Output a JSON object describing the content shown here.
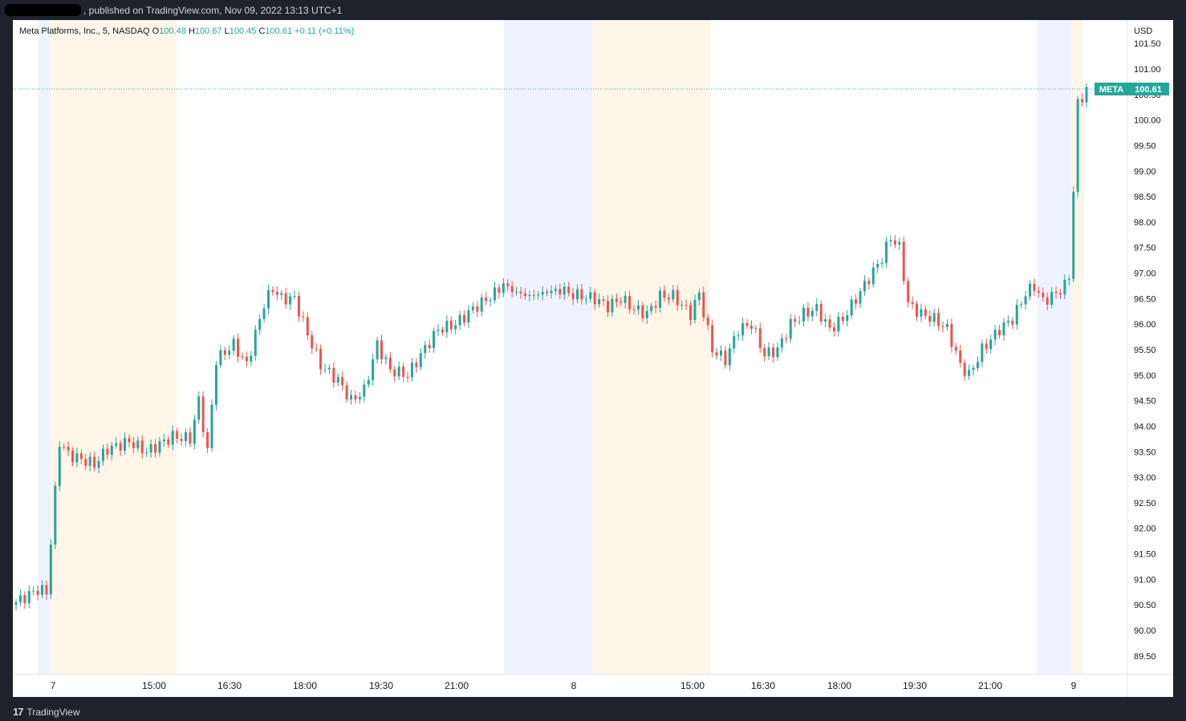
{
  "header": {
    "published_text": ", published on TradingView.com, Nov 09, 2022 13:13 UTC+1"
  },
  "footer": {
    "brand": "TradingView",
    "logo_icon": "tradingview-logo-icon"
  },
  "legend": {
    "symbol_line": "Meta Platforms, Inc., 5, NASDAQ",
    "o_label": "O",
    "o_value": "100.48",
    "h_label": "H",
    "h_value": "100.67",
    "l_label": "L",
    "l_value": "100.45",
    "c_label": "C",
    "c_value": "100.61",
    "change": "+0.11 (+0.11%)"
  },
  "price_tag": {
    "symbol": "META",
    "value": "100.61"
  },
  "colors": {
    "up": "#26a69a",
    "down": "#ef5350",
    "tag": "#26a69a",
    "premarket": "#eef3ff",
    "afterhours": "#fff5e8"
  },
  "chart_data": {
    "type": "candlestick",
    "symbol": "META",
    "interval": "5",
    "exchange": "NASDAQ",
    "currency": "USD",
    "last_price": 100.61,
    "y_ticks": [
      "101.50",
      "101.00",
      "100.50",
      "100.00",
      "99.50",
      "99.00",
      "98.50",
      "98.00",
      "97.50",
      "97.00",
      "96.50",
      "96.00",
      "95.50",
      "95.00",
      "94.50",
      "94.00",
      "93.50",
      "93.00",
      "92.50",
      "92.00",
      "91.50",
      "91.00",
      "90.50",
      "90.00",
      "89.50"
    ],
    "x_ticks": [
      "7",
      "15:00",
      "16:30",
      "18:00",
      "19:30",
      "21:00",
      "8",
      "15:00",
      "16:30",
      "18:00",
      "19:30",
      "21:00",
      "9"
    ],
    "sessions": [
      {
        "kind": "premarket",
        "label": "Nov 7 pre-market"
      },
      {
        "kind": "afterhours",
        "label": "Nov 7 extended"
      },
      {
        "kind": "premarket",
        "label": "Nov 7 post-market"
      },
      {
        "kind": "afterhours",
        "label": "Nov 8 extended"
      },
      {
        "kind": "premarket",
        "label": "Nov 8 post-market"
      },
      {
        "kind": "afterhours",
        "label": "Nov 9 extended"
      }
    ],
    "anchors": [
      {
        "t": 0,
        "p": 90.55
      },
      {
        "t": 3,
        "p": 90.7
      },
      {
        "t": 5,
        "p": 90.8
      },
      {
        "t": 7,
        "p": 90.75
      },
      {
        "t": 10,
        "p": 93.7
      },
      {
        "t": 12,
        "p": 93.45
      },
      {
        "t": 15,
        "p": 93.35
      },
      {
        "t": 18,
        "p": 93.25
      },
      {
        "t": 21,
        "p": 93.55
      },
      {
        "t": 26,
        "p": 93.7
      },
      {
        "t": 30,
        "p": 93.5
      },
      {
        "t": 36,
        "p": 93.8
      },
      {
        "t": 40,
        "p": 93.75
      },
      {
        "t": 42,
        "p": 94.5
      },
      {
        "t": 44,
        "p": 93.5
      },
      {
        "t": 46,
        "p": 95.3
      },
      {
        "t": 50,
        "p": 95.6
      },
      {
        "t": 53,
        "p": 95.2
      },
      {
        "t": 57,
        "p": 96.4
      },
      {
        "t": 59,
        "p": 96.7
      },
      {
        "t": 61,
        "p": 96.5
      },
      {
        "t": 64,
        "p": 96.5
      },
      {
        "t": 67,
        "p": 95.8
      },
      {
        "t": 70,
        "p": 95.2
      },
      {
        "t": 74,
        "p": 94.9
      },
      {
        "t": 77,
        "p": 94.5
      },
      {
        "t": 80,
        "p": 94.7
      },
      {
        "t": 83,
        "p": 95.6
      },
      {
        "t": 86,
        "p": 95.1
      },
      {
        "t": 90,
        "p": 95.0
      },
      {
        "t": 93,
        "p": 95.4
      },
      {
        "t": 97,
        "p": 95.9
      },
      {
        "t": 101,
        "p": 96.0
      },
      {
        "t": 105,
        "p": 96.3
      },
      {
        "t": 110,
        "p": 96.6
      },
      {
        "t": 112,
        "p": 96.8
      },
      {
        "t": 114,
        "p": 96.65
      },
      {
        "t": 118,
        "p": 96.55
      },
      {
        "t": 123,
        "p": 96.65
      },
      {
        "t": 125,
        "p": 96.7
      },
      {
        "t": 127,
        "p": 96.6
      },
      {
        "t": 130,
        "p": 96.55
      },
      {
        "t": 133,
        "p": 96.5
      },
      {
        "t": 136,
        "p": 96.35
      },
      {
        "t": 139,
        "p": 96.5
      },
      {
        "t": 142,
        "p": 96.3
      },
      {
        "t": 145,
        "p": 96.2
      },
      {
        "t": 148,
        "p": 96.55
      },
      {
        "t": 151,
        "p": 96.55
      },
      {
        "t": 155,
        "p": 96.2
      },
      {
        "t": 157,
        "p": 96.6
      },
      {
        "t": 160,
        "p": 95.5
      },
      {
        "t": 163,
        "p": 95.3
      },
      {
        "t": 166,
        "p": 95.9
      },
      {
        "t": 169,
        "p": 96.0
      },
      {
        "t": 172,
        "p": 95.4
      },
      {
        "t": 175,
        "p": 95.5
      },
      {
        "t": 178,
        "p": 96.0
      },
      {
        "t": 181,
        "p": 96.2
      },
      {
        "t": 184,
        "p": 96.3
      },
      {
        "t": 187,
        "p": 95.9
      },
      {
        "t": 190,
        "p": 96.1
      },
      {
        "t": 193,
        "p": 96.5
      },
      {
        "t": 196,
        "p": 96.9
      },
      {
        "t": 199,
        "p": 97.3
      },
      {
        "t": 201,
        "p": 97.7
      },
      {
        "t": 203,
        "p": 97.5
      },
      {
        "t": 205,
        "p": 96.4
      },
      {
        "t": 208,
        "p": 96.2
      },
      {
        "t": 211,
        "p": 96.1
      },
      {
        "t": 214,
        "p": 95.9
      },
      {
        "t": 217,
        "p": 95.2
      },
      {
        "t": 219,
        "p": 95.0
      },
      {
        "t": 222,
        "p": 95.5
      },
      {
        "t": 226,
        "p": 95.9
      },
      {
        "t": 229,
        "p": 96.1
      },
      {
        "t": 232,
        "p": 96.6
      },
      {
        "t": 234,
        "p": 96.75
      },
      {
        "t": 236,
        "p": 96.45
      },
      {
        "t": 239,
        "p": 96.6
      },
      {
        "t": 241,
        "p": 96.75
      },
      {
        "t": 242,
        "p": 96.95
      },
      {
        "t": 244,
        "p": 100.3
      },
      {
        "t": 246,
        "p": 100.61
      }
    ]
  }
}
